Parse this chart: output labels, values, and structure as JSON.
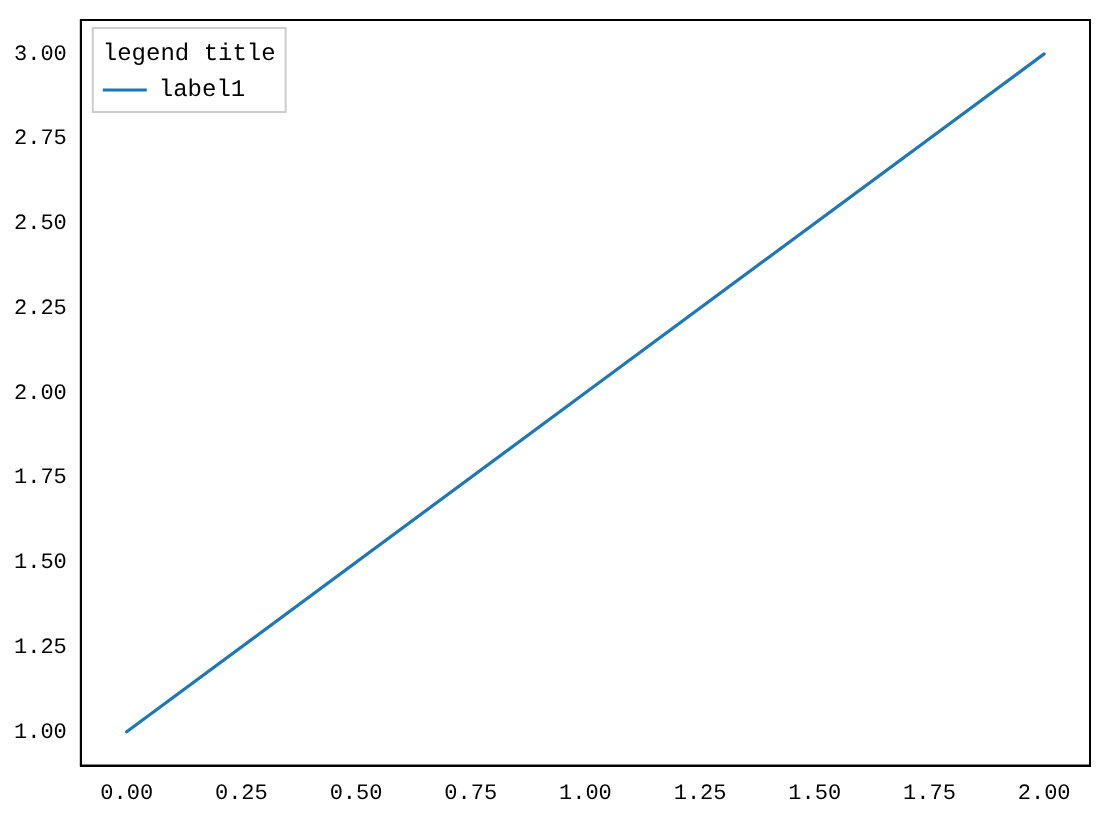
{
  "chart_data": {
    "type": "line",
    "legend_title": "legend title",
    "legend": "top left",
    "grid": false,
    "marker": "none",
    "line_style": "solid",
    "x": [
      0,
      1,
      2
    ],
    "series": [
      {
        "name": "label1",
        "color": "#1f77b4",
        "values": [
          1,
          2,
          3
        ]
      }
    ],
    "xlim": [
      -0.1,
      2.1
    ],
    "xticks": [
      {
        "value": 0,
        "label": "0.00"
      },
      {
        "value": 0.25,
        "label": "0.25"
      },
      {
        "value": 0.5,
        "label": "0.50"
      },
      {
        "value": 0.75,
        "label": "0.75"
      },
      {
        "value": 1,
        "label": "1.00"
      },
      {
        "value": 1.25,
        "label": "1.25"
      },
      {
        "value": 1.5,
        "label": "1.50"
      },
      {
        "value": 1.75,
        "label": "1.75"
      },
      {
        "value": 2,
        "label": "2.00"
      }
    ],
    "ylim": [
      0.9,
      3.1
    ],
    "yticks": [
      {
        "value": 1,
        "label": "1.00"
      },
      {
        "value": 1.25,
        "label": "1.25"
      },
      {
        "value": 1.5,
        "label": "1.50"
      },
      {
        "value": 1.75,
        "label": "1.75"
      },
      {
        "value": 2,
        "label": "2.00"
      },
      {
        "value": 2.25,
        "label": "2.25"
      },
      {
        "value": 2.5,
        "label": "2.50"
      },
      {
        "value": 2.75,
        "label": "2.75"
      },
      {
        "value": 3,
        "label": "3.00"
      }
    ]
  }
}
